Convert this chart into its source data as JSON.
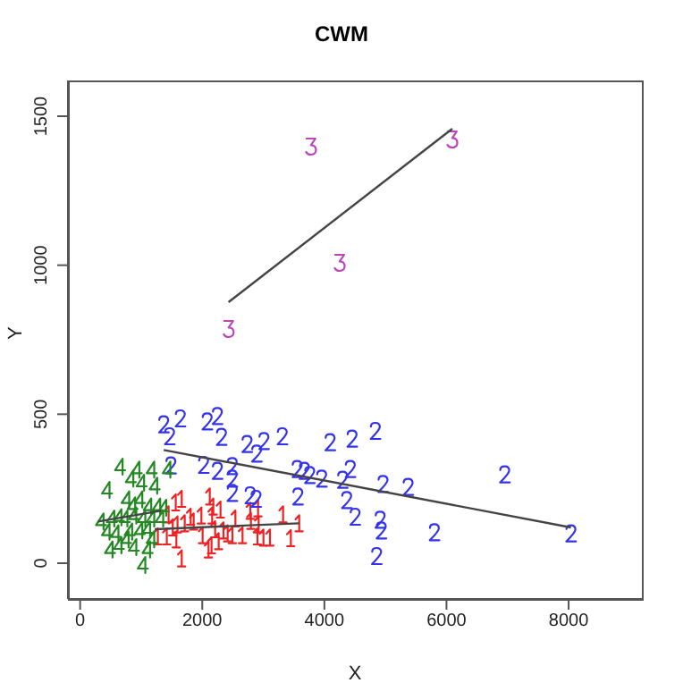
{
  "chart_data": {
    "type": "scatter",
    "title": "CWM",
    "xlabel": "X",
    "ylabel": "Y",
    "xlim": [
      -200,
      9200
    ],
    "ylim": [
      -120,
      1620
    ],
    "xticks": [
      0,
      2000,
      4000,
      6000,
      8000
    ],
    "yticks": [
      0,
      500,
      1000,
      1500
    ],
    "series": [
      {
        "color": "#ee2222",
        "x": [
          1563,
          1661,
          1807,
          1856,
          1983,
          2120,
          2178,
          2159,
          2208,
          2344,
          2413,
          2491,
          2540,
          2657,
          2784,
          2911,
          2794,
          2921,
          2999,
          3321,
          3448,
          3585,
          1661,
          1270,
          1416,
          1573,
          1514,
          2149,
          2100,
          2266,
          2003,
          1710,
          1592,
          1446,
          2296,
          3106,
          2901
        ],
        "values": [
          204,
          216,
          156,
          140,
          160,
          224,
          190,
          160,
          114,
          110,
          100,
          94,
          150,
          94,
          176,
          184,
          142,
          130,
          86,
          164,
          84,
          134,
          16,
          90,
          90,
          80,
          120,
          60,
          46,
          74,
          94,
          134,
          130,
          164,
          180,
          86,
          90
        ]
      },
      {
        "color": "#3333ee",
        "x": [
          1369,
          1641,
          2081,
          2248,
          1465,
          2315,
          2734,
          3010,
          2892,
          3311,
          4094,
          4454,
          4835,
          1486,
          2022,
          2248,
          2491,
          2491,
          3555,
          3672,
          3760,
          3956,
          4299,
          4425,
          2491,
          2784,
          2881,
          3566,
          4366,
          4504,
          4914,
          4932,
          4856,
          4961,
          5372,
          6954,
          5802,
          8038
        ],
        "values": [
          466,
          486,
          476,
          494,
          426,
          424,
          400,
          410,
          368,
          426,
          406,
          418,
          444,
          328,
          330,
          310,
          326,
          284,
          316,
          310,
          296,
          284,
          280,
          316,
          236,
          228,
          216,
          224,
          212,
          156,
          146,
          110,
          24,
          266,
          256,
          298,
          104,
          100
        ]
      },
      {
        "color": "#bb44bb",
        "x": [
          3780,
          6095,
          4250,
          2432
        ],
        "values": [
          1398,
          1422,
          1008,
          786
        ]
      },
      {
        "color": "#228822",
        "x": [
          654,
          928,
          1172,
          1436,
          830,
          1006,
          1221,
          440,
          762,
          860,
          977,
          1123,
          1270,
          1368,
          342,
          518,
          635,
          733,
          879,
          1026,
          1172,
          440,
          586,
          811,
          977,
          1104,
          489,
          635,
          879,
          1104,
          1026,
          1172,
          1319,
          752
        ],
        "values": [
          324,
          314,
          314,
          314,
          284,
          270,
          260,
          246,
          214,
          194,
          214,
          190,
          190,
          186,
          140,
          150,
          154,
          150,
          160,
          150,
          150,
          106,
          100,
          106,
          110,
          114,
          46,
          60,
          54,
          46,
          -6,
          80,
          150,
          80
        ]
      },
      {
        "type": "line",
        "color": "#444444",
        "x": [
          1221,
          3585
        ],
        "values": [
          114,
          134
        ]
      },
      {
        "type": "line",
        "color": "#444444",
        "x": [
          1369,
          8038
        ],
        "values": [
          380,
          120
        ]
      },
      {
        "type": "line",
        "color": "#444444",
        "x": [
          2430,
          6095
        ],
        "values": [
          876,
          1458
        ]
      },
      {
        "type": "line",
        "color": "#444444",
        "x": [
          293,
          1319
        ],
        "values": [
          140,
          176
        ]
      }
    ]
  }
}
